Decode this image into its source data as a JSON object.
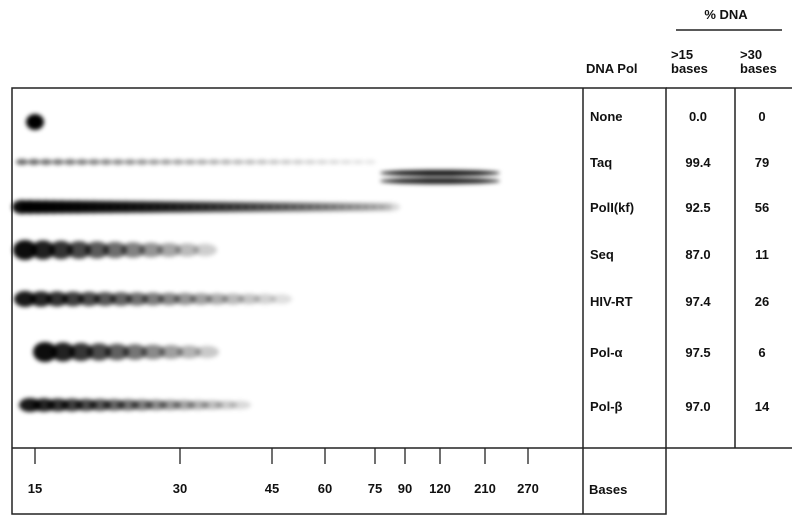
{
  "table": {
    "group_header": "% DNA",
    "columns": [
      "DNA Pol",
      ">15 bases",
      ">30 bases"
    ],
    "rows": [
      [
        "None",
        "0.0",
        "0"
      ],
      [
        "Taq",
        "99.4",
        "79"
      ],
      [
        "PolI(kf)",
        "92.5",
        "56"
      ],
      [
        "Seq",
        "87.0",
        "11"
      ],
      [
        "HIV-RT",
        "97.4",
        "26"
      ],
      [
        "Pol-α",
        "97.5",
        "6"
      ],
      [
        "Pol-β",
        "97.0",
        "14"
      ]
    ]
  },
  "axis": {
    "ticks": [
      "15",
      "30",
      "45",
      "60",
      "75",
      "90",
      "120",
      "210",
      "270"
    ],
    "label": "Bases"
  }
}
